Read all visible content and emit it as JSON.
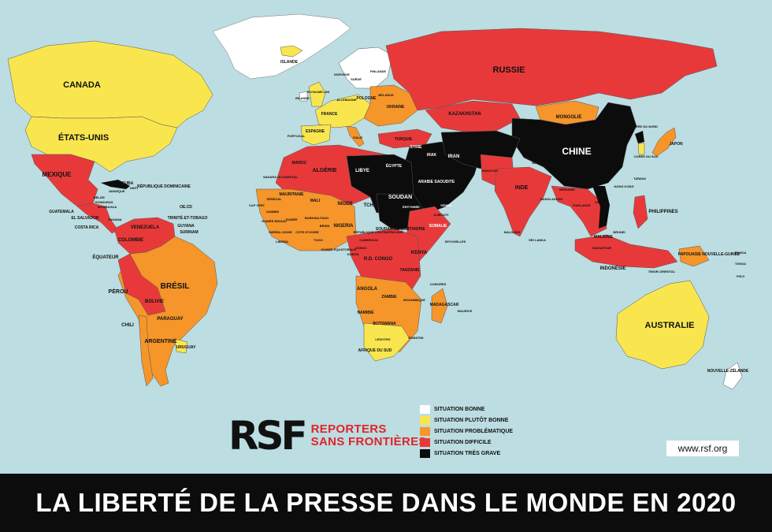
{
  "colors": {
    "ocean": "#bcdde1",
    "bonne": "#ffffff",
    "plutot_bonne": "#f9e64f",
    "problematique": "#f5952a",
    "difficile": "#e8393a",
    "tres_grave": "#0c0c0c"
  },
  "title": "LA LIBERTÉ DE LA PRESSE DANS LE MONDE EN 2020",
  "logo": {
    "mark": "RSF",
    "line1": "REPORTERS",
    "line2": "SANS FRONTIÈRES"
  },
  "website": "www.rsf.org",
  "legend": [
    {
      "label": "SITUATION BONNE",
      "color": "#ffffff"
    },
    {
      "label": "SITUATION PLUTÔT BONNE",
      "color": "#f9e64f"
    },
    {
      "label": "SITUATION PROBLÉMATIQUE",
      "color": "#f5952a"
    },
    {
      "label": "SITUATION DIFFICILE",
      "color": "#e8393a"
    },
    {
      "label": "SITUATION TRÈS GRAVE",
      "color": "#0c0c0c"
    }
  ],
  "countries": {
    "canada": "CANADA",
    "etats_unis": "ÉTATS-UNIS",
    "mexique": "MEXIQUE",
    "cuba": "CUBA",
    "jamaique": "JAMAÏQUE",
    "haiti": "HAÏTI",
    "rep_dom": "RÉPUBLIQUE DOMINICAINE",
    "belize": "BÉLIZE",
    "honduras": "HONDURAS",
    "nicaragua": "NICARAGUA",
    "guatemala": "GUATEMALA",
    "el_salvador": "EL SALVADOR",
    "costa_rica": "COSTA RICA",
    "panama": "PANAMA",
    "oecd": "OE.CD",
    "trinite": "TRINITÉ-ET-TOBAGO",
    "venezuela": "VENEZUELA",
    "guyana": "GUYANA",
    "surinam": "SURINAM",
    "colombie": "COLOMBIE",
    "equateur": "ÉQUATEUR",
    "perou": "PÉROU",
    "bresil": "BRÉSIL",
    "bolivie": "BOLIVIE",
    "paraguay": "PARAGUAY",
    "chili": "CHILI",
    "argentine": "ARGENTINE",
    "uruguay": "URUGUAY",
    "islande": "ISLANDE",
    "norvege": "NORVÈGE",
    "suede": "SUÈDE",
    "finlande": "FINLANDE",
    "royaume_uni": "ROYAUME-UNI",
    "irlande": "IRLANDE",
    "france": "FRANCE",
    "espagne": "ESPAGNE",
    "portugal": "PORTUGAL",
    "italie": "ITALIE",
    "allemagne": "ALLEMAGNE",
    "pologne": "POLOGNE",
    "belarus": "BÉLARUS",
    "ukraine": "UKRAINE",
    "turquie": "TURQUIE",
    "russie": "RUSSIE",
    "kazakhstan": "KAZAKHSTAN",
    "mongolie": "MONGOLIE",
    "turkmenistan": "TURKMÉNISTAN",
    "chine": "CHINE",
    "coree_nord": "CORÉE DU NORD",
    "coree_sud": "CORÉE DU SUD",
    "japon": "JAPON",
    "taiwan": "TAÏWAN",
    "hong_kong": "HONG KONG",
    "syrie": "SYRIE",
    "irak": "IRAK",
    "iran": "IRAN",
    "afghanistan": "AFGHANISTAN",
    "pakistan": "PAKISTAN",
    "inde": "INDE",
    "nepal": "NÉPAL",
    "bhoutan": "BHOUTAN",
    "bangladesh": "BANGLADESH",
    "birmanie": "BIRMANIE",
    "thailande": "THAÏLANDE",
    "vietnam": "VIETNAM",
    "philippines": "PHILIPPINES",
    "malaisie": "MALAISIE",
    "brunei": "BRUNEI",
    "singapour": "SINGAPOUR",
    "indonesie": "INDONÉSIE",
    "timor": "TIMOR-ORIENTAL",
    "png": "PAPOUASIE NOUVELLE-GUINÉE",
    "australie": "AUSTRALIE",
    "nz": "NOUVELLE-ZÉLANDE",
    "samoa": "SAMOA",
    "tonga": "TONGA",
    "fidji": "FIDJI",
    "sri_lanka": "SRI LANKA",
    "maldives": "MALDIVES",
    "maroc": "MAROC",
    "sahara": "SAHARA OCCIDENTAL",
    "algerie": "ALGÉRIE",
    "libye": "LIBYE",
    "egypte": "ÉGYPTE",
    "arabie": "ARABIE SAOUDITE",
    "yemen": "YÉMEN",
    "mauritanie": "MAURITANIE",
    "mali": "MALI",
    "niger": "NIGER",
    "tchad": "TCHAD",
    "soudan": "SOUDAN",
    "erythree": "ÉRYTHRÉE",
    "djibouti": "DJIBOUTI",
    "somalie": "SOMALIE",
    "ethiopie": "ÉTHIOPIE",
    "soudan_sud": "SOUDAN DU SUD",
    "senegal": "SÉNÉGAL",
    "cap_vert": "CAP VERT",
    "gambie": "GAMBIE",
    "guinee_bissau": "GUINÉE-BISSAU",
    "guinee": "GUINÉE",
    "sierra_leone": "SIERRA LEONE",
    "liberia": "LIBERIA",
    "cote_ivoire": "CÔTE D'IVOIRE",
    "burkina": "BURKINA FASO",
    "benin": "BÉNIN",
    "togo": "TOGO",
    "nigeria": "NIGERIA",
    "cameroun": "CAMEROUN",
    "rca": "RÉPUBLIQUE CENTRAFRICAINE",
    "guinee_eq": "GUINÉE ÉQUATORIALE",
    "gabon": "GABON",
    "congo": "CONGO",
    "rdc": "R.D. CONGO",
    "kenya": "KENYA",
    "tanzanie": "TANZANIE",
    "seychelles": "SEYCHELLES",
    "angola": "ANGOLA",
    "zambie": "ZAMBIE",
    "mozambique": "MOZAMBIQUE",
    "comores": "COMORES",
    "madagascar": "MADAGASCAR",
    "maurice": "MAURICE",
    "namibie": "NAMIBIE",
    "botswana": "BOTSWANA",
    "lesotho": "LESOTHO",
    "eswatini": "ESWATINI",
    "afrique_sud": "AFRIQUE DU SUD"
  }
}
